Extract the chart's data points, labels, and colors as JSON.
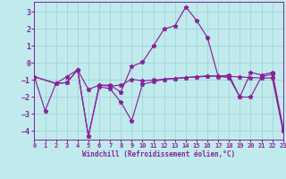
{
  "xlabel": "Windchill (Refroidissement éolien,°C)",
  "bg_color": "#c0eaec",
  "grid_color": "#a0d4d8",
  "line_color": "#882299",
  "xlim": [
    0,
    23
  ],
  "ylim": [
    -4.5,
    3.6
  ],
  "yticks": [
    -4,
    -3,
    -2,
    -1,
    0,
    1,
    2,
    3
  ],
  "xticks": [
    0,
    1,
    2,
    3,
    4,
    5,
    6,
    7,
    8,
    9,
    10,
    11,
    12,
    13,
    14,
    15,
    16,
    17,
    18,
    19,
    20,
    21,
    22,
    23
  ],
  "series": [
    {
      "x": [
        0,
        1,
        2,
        3,
        4,
        5,
        6,
        7,
        8,
        9,
        10,
        11,
        12,
        13,
        14,
        15,
        16,
        17,
        18,
        19,
        20,
        21,
        22,
        23
      ],
      "y": [
        -0.8,
        -2.8,
        -1.2,
        -0.8,
        -0.4,
        -4.3,
        -1.3,
        -1.3,
        -1.7,
        -0.2,
        0.05,
        1.0,
        2.0,
        2.2,
        3.3,
        2.5,
        1.5,
        -0.8,
        -0.7,
        -2.0,
        -0.55,
        -0.7,
        -0.55,
        -3.8
      ]
    },
    {
      "x": [
        0,
        2,
        3,
        4,
        5,
        6,
        7,
        8,
        9,
        10,
        11,
        12,
        13,
        14,
        15,
        16,
        17,
        18,
        19,
        20,
        21,
        22,
        23
      ],
      "y": [
        -0.8,
        -1.2,
        -1.15,
        -0.4,
        -1.55,
        -1.3,
        -1.35,
        -1.3,
        -0.95,
        -1.05,
        -1.0,
        -0.95,
        -0.9,
        -0.85,
        -0.82,
        -0.78,
        -0.75,
        -0.78,
        -0.82,
        -0.85,
        -0.88,
        -0.88,
        -4.0
      ]
    },
    {
      "x": [
        0,
        2,
        3,
        4,
        5,
        6,
        7,
        8,
        9,
        10,
        11,
        12,
        13,
        14,
        15,
        16,
        17,
        18,
        19,
        20,
        21,
        22,
        23
      ],
      "y": [
        -0.8,
        -1.2,
        -1.15,
        -0.4,
        -4.3,
        -1.4,
        -1.5,
        -2.3,
        -3.4,
        -1.25,
        -1.1,
        -0.95,
        -0.9,
        -0.85,
        -0.8,
        -0.75,
        -0.78,
        -0.85,
        -2.0,
        -2.0,
        -0.8,
        -0.65,
        -4.0
      ]
    }
  ]
}
